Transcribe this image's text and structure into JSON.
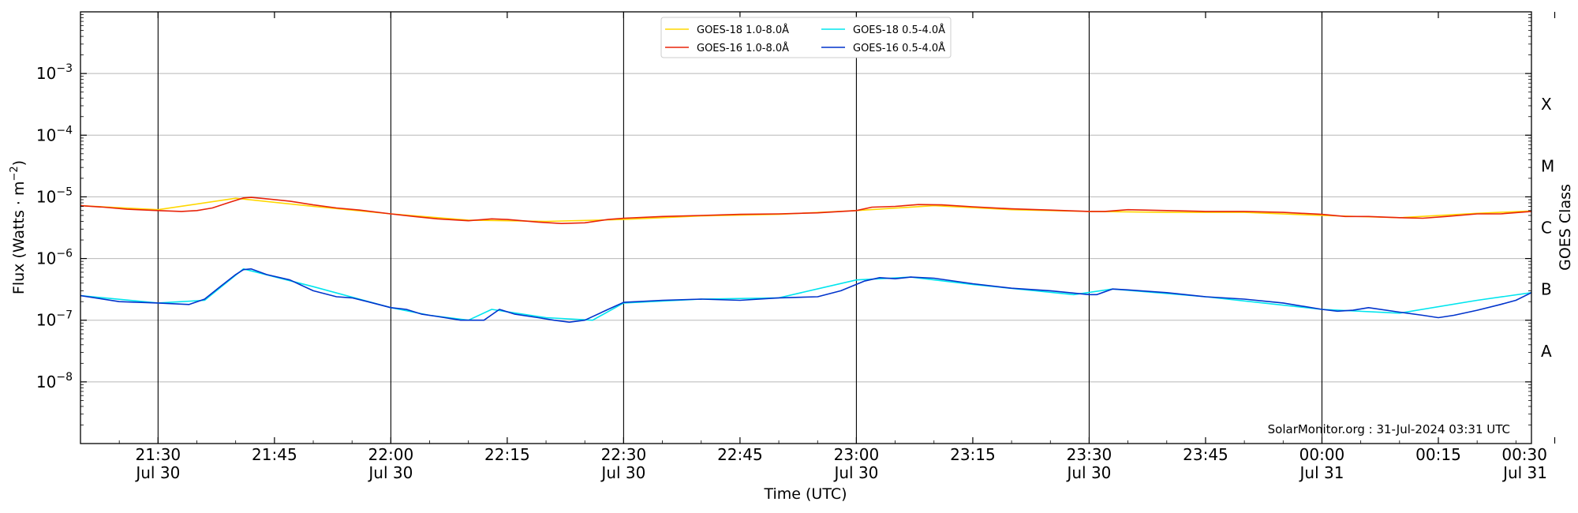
{
  "chart_data": {
    "type": "line",
    "ylabel": "Flux (Watts · m",
    "ylabel_sup": "−2",
    "ylabel_close": ")",
    "xlabel": "Time (UTC)",
    "right_label": "GOES Class",
    "credit": "SolarMonitor.org : 31-Jul-2024 03:31 UTC",
    "y_scale": "log",
    "ylim": [
      1e-09,
      0.01
    ],
    "xlim_minutes_after_21_00_jul30": [
      20,
      207
    ],
    "grid": "horizontal lines at decades 10^-8 to 10^-3; vertical black lines every 30 minutes",
    "legend_position": "top-center",
    "y_ticks": [
      {
        "value": 1e-08,
        "base": "10",
        "exp": "−8"
      },
      {
        "value": 1e-07,
        "base": "10",
        "exp": "−7"
      },
      {
        "value": 1e-06,
        "base": "10",
        "exp": "−6"
      },
      {
        "value": 1e-05,
        "base": "10",
        "exp": "−5"
      },
      {
        "value": 0.0001,
        "base": "10",
        "exp": "−4"
      },
      {
        "value": 0.001,
        "base": "10",
        "exp": "−3"
      }
    ],
    "goes_classes": [
      {
        "label": "A",
        "value": 3.16e-08
      },
      {
        "label": "B",
        "value": 3.16e-07
      },
      {
        "label": "C",
        "value": 3.16e-06
      },
      {
        "label": "M",
        "value": 3.16e-05
      },
      {
        "label": "X",
        "value": 0.000316
      }
    ],
    "x_ticks": [
      {
        "t": 30,
        "time": "21:30",
        "date": "Jul 30"
      },
      {
        "t": 45,
        "time": "21:45",
        "date": ""
      },
      {
        "t": 60,
        "time": "22:00",
        "date": "Jul 30"
      },
      {
        "t": 75,
        "time": "22:15",
        "date": ""
      },
      {
        "t": 90,
        "time": "22:30",
        "date": "Jul 30"
      },
      {
        "t": 105,
        "time": "22:45",
        "date": ""
      },
      {
        "t": 120,
        "time": "23:00",
        "date": "Jul 30"
      },
      {
        "t": 135,
        "time": "23:15",
        "date": ""
      },
      {
        "t": 150,
        "time": "23:30",
        "date": "Jul 30"
      },
      {
        "t": 165,
        "time": "23:45",
        "date": ""
      },
      {
        "t": 180,
        "time": "00:00",
        "date": "Jul 31"
      },
      {
        "t": 195,
        "time": "00:15",
        "date": ""
      },
      {
        "t": 210,
        "time": "00:30",
        "date": "Jul 31"
      }
    ],
    "series": [
      {
        "name": "GOES-18 1.0-8.0Å",
        "color": "#ffd700",
        "x": [
          20,
          30,
          40,
          50,
          60,
          70,
          80,
          90,
          100,
          110,
          120,
          130,
          140,
          150,
          160,
          170,
          180,
          190,
          200,
          207
        ],
        "y": [
          7.2e-06,
          6.2e-06,
          9.5e-06,
          7e-06,
          5.3e-06,
          4.2e-06,
          4e-06,
          4.3e-06,
          4.9e-06,
          5.2e-06,
          6e-06,
          7.2e-06,
          6.2e-06,
          5.8e-06,
          5.6e-06,
          5.6e-06,
          5e-06,
          4.6e-06,
          5.4e-06,
          5.9e-06
        ]
      },
      {
        "name": "GOES-16 1.0-8.0Å",
        "color": "#e8230a",
        "x": [
          20,
          23,
          26,
          30,
          33,
          35,
          37,
          39,
          41,
          42,
          44,
          47,
          50,
          53,
          56,
          60,
          63,
          66,
          70,
          73,
          75,
          79,
          82,
          85,
          88,
          90,
          95,
          100,
          105,
          110,
          115,
          120,
          122,
          125,
          128,
          131,
          135,
          140,
          145,
          150,
          152,
          155,
          160,
          165,
          170,
          175,
          180,
          183,
          186,
          190,
          193,
          196,
          200,
          203,
          207
        ],
        "y": [
          7.2e-06,
          6.8e-06,
          6.3e-06,
          6e-06,
          5.8e-06,
          6e-06,
          6.6e-06,
          8e-06,
          9.6e-06,
          9.8e-06,
          9.3e-06,
          8.5e-06,
          7.4e-06,
          6.6e-06,
          6.1e-06,
          5.3e-06,
          4.8e-06,
          4.4e-06,
          4.1e-06,
          4.4e-06,
          4.3e-06,
          3.9e-06,
          3.7e-06,
          3.8e-06,
          4.3e-06,
          4.5e-06,
          4.8e-06,
          5e-06,
          5.2e-06,
          5.3e-06,
          5.5e-06,
          6e-06,
          6.8e-06,
          7e-06,
          7.5e-06,
          7.4e-06,
          6.9e-06,
          6.4e-06,
          6.1e-06,
          5.8e-06,
          5.8e-06,
          6.2e-06,
          6e-06,
          5.8e-06,
          5.8e-06,
          5.6e-06,
          5.2e-06,
          4.8e-06,
          4.8e-06,
          4.6e-06,
          4.5e-06,
          4.8e-06,
          5.3e-06,
          5.3e-06,
          5.8e-06
        ]
      },
      {
        "name": "GOES-18 0.5-4.0Å",
        "color": "#00e5ee",
        "x": [
          20,
          30,
          36,
          41,
          50,
          60,
          65,
          70,
          73,
          80,
          86,
          90,
          100,
          110,
          120,
          127,
          135,
          148,
          153,
          165,
          180,
          190,
          200,
          207
        ],
        "y": [
          2.5e-07,
          1.9e-07,
          2.1e-07,
          6.8e-07,
          3.5e-07,
          1.6e-07,
          1.2e-07,
          1e-07,
          1.5e-07,
          1.1e-07,
          1e-07,
          1.9e-07,
          2.2e-07,
          2.3e-07,
          4.5e-07,
          5e-07,
          3.8e-07,
          2.6e-07,
          3.2e-07,
          2.4e-07,
          1.5e-07,
          1.3e-07,
          2.1e-07,
          2.8e-07
        ]
      },
      {
        "name": "GOES-16 0.5-4.0Å",
        "color": "#0033cc",
        "x": [
          20,
          25,
          30,
          34,
          36,
          38,
          40,
          41,
          42,
          44,
          47,
          50,
          53,
          55,
          57,
          60,
          62,
          64,
          66,
          69,
          72,
          74,
          76,
          79,
          81,
          83,
          85,
          88,
          90,
          95,
          100,
          105,
          110,
          115,
          118,
          121,
          123,
          125,
          127,
          130,
          135,
          140,
          145,
          150,
          151,
          153,
          155,
          160,
          165,
          170,
          175,
          180,
          182,
          184,
          186,
          190,
          193,
          195,
          197,
          200,
          203,
          205,
          207
        ],
        "y": [
          2.5e-07,
          2e-07,
          1.9e-07,
          1.8e-07,
          2.2e-07,
          3.5e-07,
          5.5e-07,
          6.6e-07,
          6.8e-07,
          5.5e-07,
          4.5e-07,
          3e-07,
          2.4e-07,
          2.3e-07,
          2e-07,
          1.6e-07,
          1.5e-07,
          1.25e-07,
          1.15e-07,
          1e-07,
          1e-07,
          1.5e-07,
          1.25e-07,
          1.1e-07,
          1e-07,
          9.3e-08,
          1e-07,
          1.5e-07,
          1.95e-07,
          2.1e-07,
          2.2e-07,
          2.1e-07,
          2.3e-07,
          2.4e-07,
          3e-07,
          4.3e-07,
          4.9e-07,
          4.7e-07,
          5e-07,
          4.8e-07,
          3.9e-07,
          3.3e-07,
          3e-07,
          2.6e-07,
          2.6e-07,
          3.2e-07,
          3.1e-07,
          2.8e-07,
          2.4e-07,
          2.2e-07,
          1.9e-07,
          1.5e-07,
          1.4e-07,
          1.45e-07,
          1.6e-07,
          1.35e-07,
          1.2e-07,
          1.1e-07,
          1.2e-07,
          1.45e-07,
          1.8e-07,
          2.1e-07,
          2.8e-07
        ]
      }
    ]
  }
}
